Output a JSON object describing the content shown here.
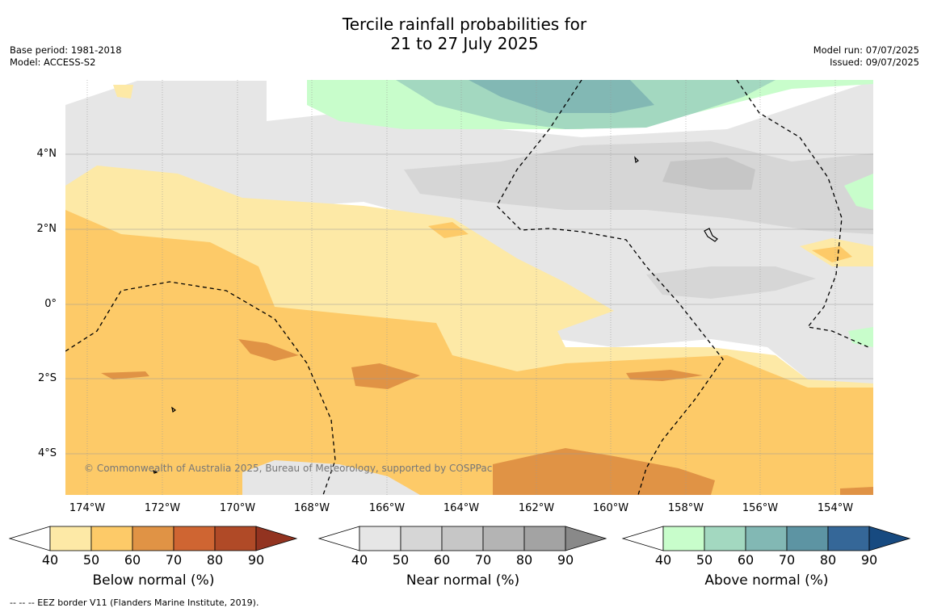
{
  "header": {
    "title_line1": "Tercile rainfall probabilities for",
    "title_line2": "21 to 27 July 2025",
    "base_period": "Base period: 1981-2018",
    "model": "Model: ACCESS-S2",
    "model_run": "Model run: 07/07/2025",
    "issued": "Issued: 09/07/2025"
  },
  "map": {
    "lat_labels": [
      "4°N",
      "2°N",
      "0°",
      "2°S",
      "4°S"
    ],
    "lon_labels": [
      "174°W",
      "172°W",
      "170°W",
      "168°W",
      "166°W",
      "164°W",
      "162°W",
      "160°W",
      "158°W",
      "156°W",
      "154°W"
    ],
    "copyright": "© Commonwealth of Australia 2025, Bureau of Meteorology, supported by COSPPac"
  },
  "colorbars": [
    {
      "label": "Below normal (%)",
      "ticks": [
        "40",
        "50",
        "60",
        "70",
        "80",
        "90"
      ],
      "colors": [
        "#fde9a6",
        "#fdca68",
        "#e09345",
        "#cf6532",
        "#b04a27",
        "#923320"
      ]
    },
    {
      "label": "Near normal (%)",
      "ticks": [
        "40",
        "50",
        "60",
        "70",
        "80",
        "90"
      ],
      "colors": [
        "#e6e6e6",
        "#d6d6d6",
        "#c6c6c6",
        "#b4b4b4",
        "#a3a3a3",
        "#898989"
      ]
    },
    {
      "label": "Above normal (%)",
      "ticks": [
        "40",
        "50",
        "60",
        "70",
        "80",
        "90"
      ],
      "colors": [
        "#c8fdcb",
        "#a3d8c0",
        "#82b8b4",
        "#5d94a3",
        "#356798",
        "#174a80"
      ]
    }
  ],
  "footer": {
    "legend_line": "--  --  -- EEZ border V11 (Flanders Marine Institute, 2019)."
  }
}
